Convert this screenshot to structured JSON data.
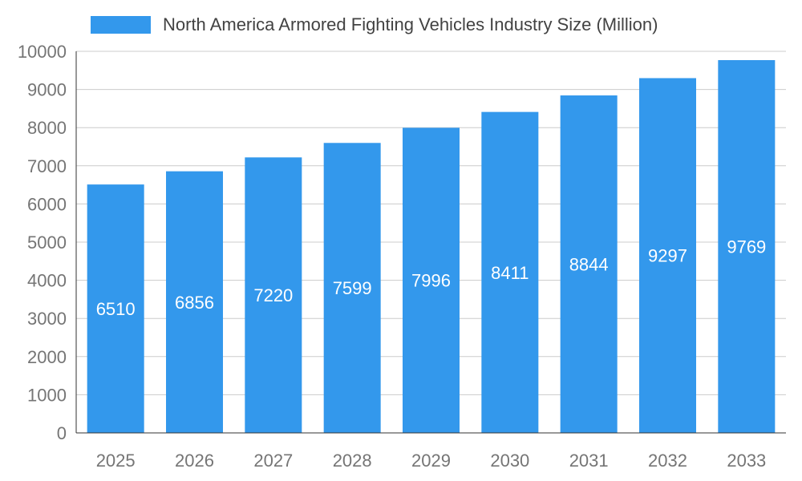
{
  "chart_data": {
    "type": "bar",
    "title": "North America Armored Fighting Vehicles Industry Size (Million)",
    "categories": [
      "2025",
      "2026",
      "2027",
      "2028",
      "2029",
      "2030",
      "2031",
      "2032",
      "2033"
    ],
    "values": [
      6510,
      6856,
      7220,
      7599,
      7996,
      8411,
      8844,
      9297,
      9769
    ],
    "xlabel": "",
    "ylabel": "",
    "ylim": [
      0,
      10000
    ],
    "ytick_step": 1000,
    "grid": true,
    "legend_position": "top-left",
    "colors": {
      "bar": "#3398ec",
      "bar_value_label": "#ffffff",
      "gridline": "#cccccc",
      "axis_line": "#333333",
      "tick_label": "#757575",
      "title_text": "#424242"
    }
  }
}
